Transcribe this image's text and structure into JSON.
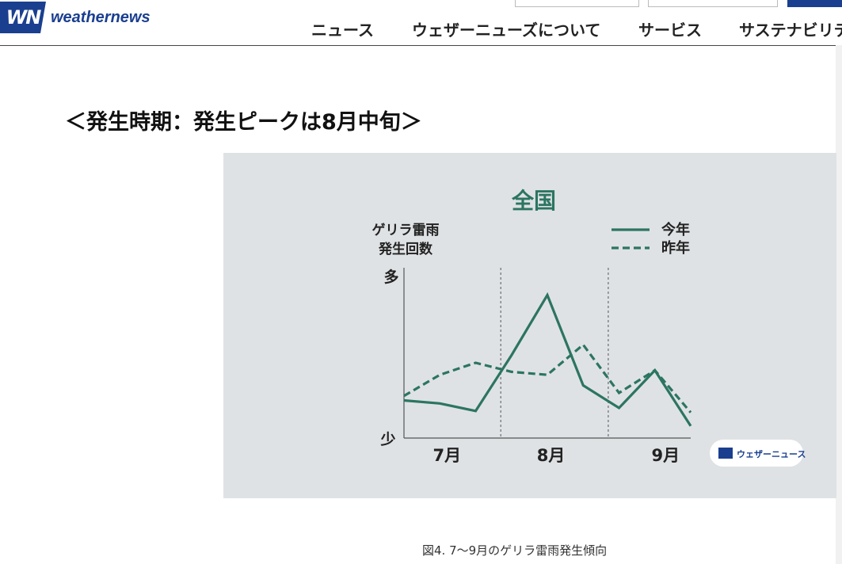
{
  "header": {
    "logo_mark": "WN",
    "logo_text": "weathernews",
    "nav": [
      {
        "label": "ニュース"
      },
      {
        "label": "ウェザーニューズについて"
      },
      {
        "label": "サービス"
      },
      {
        "label": "サステナビリテ"
      }
    ]
  },
  "main": {
    "section_title": "＜発生時期：発生ピークは8月中旬＞",
    "caption": "図4. 7〜9月のゲリラ雷雨発生傾向"
  },
  "colors": {
    "accent_green": "#2c7560",
    "brand_blue": "#1a3f8f",
    "figure_bg": "#dfe2e4"
  },
  "chart_data": {
    "type": "line",
    "title": "全国",
    "ylabel": "ゲリラ雷雨\n発生回数",
    "y_tick_labels": {
      "top": "多",
      "bottom": "少"
    },
    "month_labels": [
      "7月",
      "8月",
      "9月"
    ],
    "x": [
      0,
      1,
      2,
      3,
      4,
      5,
      6,
      7,
      8
    ],
    "series": [
      {
        "name": "今年",
        "style": "solid",
        "values": [
          25,
          23,
          18,
          55,
          95,
          35,
          20,
          45,
          8
        ]
      },
      {
        "name": "昨年",
        "style": "dashed",
        "values": [
          28,
          42,
          50,
          44,
          42,
          62,
          30,
          45,
          17
        ]
      }
    ],
    "ylim": [
      0,
      100
    ],
    "legend_position": "top-right",
    "watermark": "ウェザーニュース"
  }
}
